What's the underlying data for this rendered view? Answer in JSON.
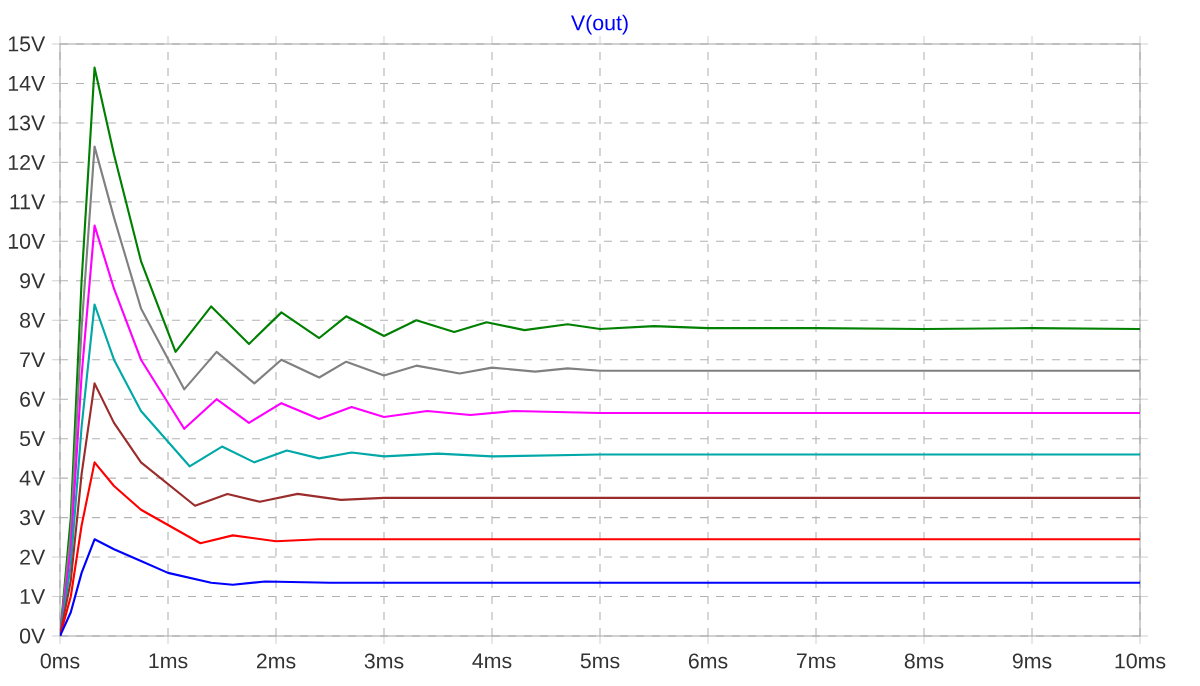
{
  "chart_data": {
    "type": "line",
    "title": "V(out)",
    "xlim": [
      0,
      10
    ],
    "ylim": [
      0,
      15
    ],
    "xticks": [
      {
        "value": 0,
        "label": "0ms"
      },
      {
        "value": 1,
        "label": "1ms"
      },
      {
        "value": 2,
        "label": "2ms"
      },
      {
        "value": 3,
        "label": "3ms"
      },
      {
        "value": 4,
        "label": "4ms"
      },
      {
        "value": 5,
        "label": "5ms"
      },
      {
        "value": 6,
        "label": "6ms"
      },
      {
        "value": 7,
        "label": "7ms"
      },
      {
        "value": 8,
        "label": "8ms"
      },
      {
        "value": 9,
        "label": "9ms"
      },
      {
        "value": 10,
        "label": "10ms"
      }
    ],
    "yticks": [
      {
        "value": 0,
        "label": "0V"
      },
      {
        "value": 1,
        "label": "1V"
      },
      {
        "value": 2,
        "label": "2V"
      },
      {
        "value": 3,
        "label": "3V"
      },
      {
        "value": 4,
        "label": "4V"
      },
      {
        "value": 5,
        "label": "5V"
      },
      {
        "value": 6,
        "label": "6V"
      },
      {
        "value": 7,
        "label": "7V"
      },
      {
        "value": 8,
        "label": "8V"
      },
      {
        "value": 9,
        "label": "9V"
      },
      {
        "value": 10,
        "label": "10V"
      },
      {
        "value": 11,
        "label": "11V"
      },
      {
        "value": 12,
        "label": "12V"
      },
      {
        "value": 13,
        "label": "13V"
      },
      {
        "value": 14,
        "label": "14V"
      },
      {
        "value": 15,
        "label": "15V"
      }
    ],
    "grid": true,
    "marker": "none",
    "line_style": "solid",
    "series": [
      {
        "color": "#008000",
        "x": [
          0,
          0.1,
          0.2,
          0.32,
          0.5,
          0.75,
          1.07,
          1.4,
          1.75,
          2.05,
          2.4,
          2.65,
          3.0,
          3.3,
          3.65,
          3.95,
          4.3,
          4.7,
          5,
          5.5,
          6,
          7,
          8,
          9,
          10
        ],
        "values": [
          0,
          3,
          9,
          14.4,
          12.2,
          9.5,
          7.2,
          8.35,
          7.4,
          8.2,
          7.55,
          8.1,
          7.6,
          8.0,
          7.7,
          7.95,
          7.75,
          7.9,
          7.78,
          7.85,
          7.8,
          7.8,
          7.78,
          7.8,
          7.78
        ]
      },
      {
        "color": "#808080",
        "x": [
          0,
          0.1,
          0.2,
          0.32,
          0.5,
          0.75,
          1.15,
          1.45,
          1.8,
          2.05,
          2.4,
          2.65,
          3.0,
          3.3,
          3.7,
          4.0,
          4.4,
          4.7,
          5,
          10
        ],
        "values": [
          0,
          2.6,
          7.8,
          12.4,
          10.6,
          8.3,
          6.25,
          7.2,
          6.4,
          7.0,
          6.55,
          6.95,
          6.6,
          6.85,
          6.65,
          6.8,
          6.7,
          6.78,
          6.72,
          6.72
        ]
      },
      {
        "color": "#ff00ff",
        "x": [
          0,
          0.1,
          0.2,
          0.32,
          0.5,
          0.75,
          1.15,
          1.45,
          1.75,
          2.05,
          2.4,
          2.7,
          3.0,
          3.4,
          3.8,
          4.2,
          5,
          10
        ],
        "values": [
          0,
          2.2,
          6.6,
          10.4,
          8.8,
          7.0,
          5.25,
          6.0,
          5.4,
          5.9,
          5.5,
          5.8,
          5.55,
          5.7,
          5.6,
          5.7,
          5.65,
          5.65
        ]
      },
      {
        "color": "#00a8a8",
        "x": [
          0,
          0.1,
          0.2,
          0.32,
          0.5,
          0.75,
          1.2,
          1.5,
          1.8,
          2.1,
          2.4,
          2.7,
          3.0,
          3.5,
          4,
          5,
          10
        ],
        "values": [
          0,
          1.8,
          5.3,
          8.4,
          7.0,
          5.7,
          4.3,
          4.8,
          4.4,
          4.7,
          4.5,
          4.65,
          4.55,
          4.62,
          4.55,
          4.6,
          4.6
        ]
      },
      {
        "color": "#9b2c2c",
        "x": [
          0,
          0.1,
          0.2,
          0.32,
          0.5,
          0.75,
          1.25,
          1.55,
          1.85,
          2.2,
          2.6,
          3,
          10
        ],
        "values": [
          0,
          1.4,
          4.1,
          6.4,
          5.4,
          4.4,
          3.3,
          3.6,
          3.4,
          3.6,
          3.45,
          3.5,
          3.5
        ]
      },
      {
        "color": "#ff0000",
        "x": [
          0,
          0.1,
          0.2,
          0.32,
          0.5,
          0.75,
          1.3,
          1.6,
          2.0,
          2.4,
          10
        ],
        "values": [
          0,
          1.0,
          2.8,
          4.4,
          3.8,
          3.2,
          2.35,
          2.55,
          2.4,
          2.45,
          2.45
        ]
      },
      {
        "color": "#0000ff",
        "x": [
          0,
          0.1,
          0.2,
          0.32,
          0.5,
          0.75,
          1.0,
          1.4,
          1.6,
          1.9,
          2.5,
          10
        ],
        "values": [
          0,
          0.6,
          1.6,
          2.45,
          2.2,
          1.9,
          1.6,
          1.35,
          1.3,
          1.38,
          1.35,
          1.35
        ]
      }
    ]
  }
}
